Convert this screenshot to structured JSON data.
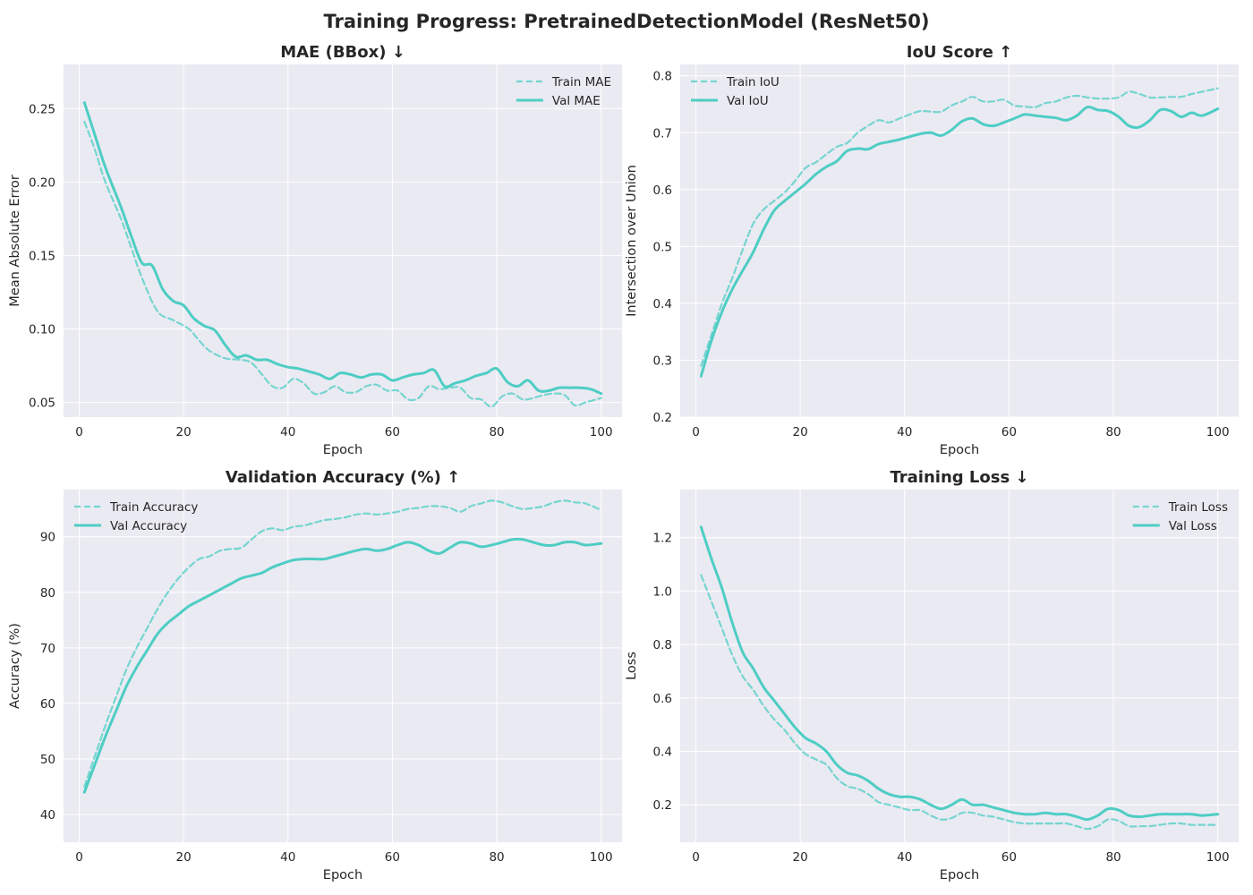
{
  "figure": {
    "suptitle": "Training Progress: PretrainedDetectionModel (ResNet50)",
    "colors": {
      "background": "#eaeaf2",
      "grid": "#ffffff",
      "line": "#4ecdc4"
    }
  },
  "chart_data": [
    {
      "type": "line",
      "title": "MAE (BBox) ↓",
      "xlabel": "Epoch",
      "ylabel": "Mean Absolute Error",
      "xlim": [
        -3,
        104
      ],
      "ylim": [
        0.04,
        0.28
      ],
      "xticks": [
        0,
        20,
        40,
        60,
        80,
        100
      ],
      "yticks": [
        0.05,
        0.1,
        0.15,
        0.2,
        0.25
      ],
      "ytick_labels": [
        "0.05",
        "0.10",
        "0.15",
        "0.20",
        "0.25"
      ],
      "legend": "top-right",
      "grid": true,
      "series": [
        {
          "name": "Train MAE",
          "style": "dashed",
          "x": [
            1,
            3,
            5,
            8,
            10,
            12,
            15,
            18,
            21,
            23,
            25,
            28,
            31,
            33,
            35,
            37,
            39,
            41,
            43,
            45,
            47,
            49,
            51,
            53,
            55,
            57,
            59,
            61,
            63,
            65,
            67,
            69,
            71,
            73,
            75,
            77,
            79,
            81,
            83,
            85,
            87,
            89,
            91,
            93,
            95,
            97,
            100
          ],
          "y": [
            0.241,
            0.222,
            0.2,
            0.175,
            0.155,
            0.135,
            0.112,
            0.106,
            0.1,
            0.092,
            0.085,
            0.08,
            0.079,
            0.077,
            0.069,
            0.061,
            0.06,
            0.066,
            0.063,
            0.056,
            0.057,
            0.061,
            0.057,
            0.057,
            0.061,
            0.062,
            0.058,
            0.058,
            0.052,
            0.053,
            0.061,
            0.059,
            0.06,
            0.06,
            0.053,
            0.052,
            0.047,
            0.054,
            0.056,
            0.052,
            0.053,
            0.055,
            0.056,
            0.055,
            0.048,
            0.05,
            0.053
          ]
        },
        {
          "name": "Val MAE",
          "style": "solid",
          "x": [
            1,
            3,
            5,
            8,
            10,
            12,
            14,
            16,
            18,
            20,
            22,
            24,
            26,
            28,
            30,
            32,
            34,
            36,
            38,
            40,
            42,
            44,
            46,
            48,
            50,
            52,
            54,
            56,
            58,
            60,
            62,
            64,
            66,
            68,
            70,
            72,
            74,
            76,
            78,
            80,
            82,
            84,
            86,
            88,
            90,
            92,
            94,
            96,
            98,
            100
          ],
          "y": [
            0.254,
            0.232,
            0.21,
            0.183,
            0.163,
            0.145,
            0.143,
            0.127,
            0.119,
            0.116,
            0.107,
            0.102,
            0.099,
            0.089,
            0.081,
            0.082,
            0.079,
            0.079,
            0.076,
            0.074,
            0.073,
            0.071,
            0.069,
            0.066,
            0.07,
            0.069,
            0.067,
            0.069,
            0.069,
            0.065,
            0.067,
            0.069,
            0.07,
            0.072,
            0.061,
            0.063,
            0.065,
            0.068,
            0.07,
            0.073,
            0.064,
            0.061,
            0.065,
            0.058,
            0.058,
            0.06,
            0.06,
            0.06,
            0.059,
            0.056
          ]
        }
      ]
    },
    {
      "type": "line",
      "title": "IoU Score ↑",
      "xlabel": "Epoch",
      "ylabel": "Intersection over Union",
      "xlim": [
        -3,
        104
      ],
      "ylim": [
        0.2,
        0.82
      ],
      "xticks": [
        0,
        20,
        40,
        60,
        80,
        100
      ],
      "yticks": [
        0.2,
        0.3,
        0.4,
        0.5,
        0.6,
        0.7,
        0.8
      ],
      "ytick_labels": [
        "0.2",
        "0.3",
        "0.4",
        "0.5",
        "0.6",
        "0.7",
        "0.8"
      ],
      "legend": "top-left",
      "grid": true,
      "series": [
        {
          "name": "Train IoU",
          "style": "dashed",
          "x": [
            1,
            3,
            5,
            7,
            9,
            11,
            13,
            15,
            17,
            19,
            21,
            23,
            25,
            27,
            29,
            31,
            33,
            35,
            37,
            39,
            41,
            43,
            45,
            47,
            49,
            51,
            53,
            55,
            57,
            59,
            61,
            63,
            65,
            67,
            69,
            71,
            73,
            75,
            77,
            79,
            81,
            83,
            85,
            87,
            89,
            91,
            93,
            95,
            97,
            100
          ],
          "y": [
            0.29,
            0.345,
            0.4,
            0.445,
            0.495,
            0.54,
            0.565,
            0.58,
            0.595,
            0.615,
            0.638,
            0.648,
            0.662,
            0.675,
            0.682,
            0.7,
            0.712,
            0.722,
            0.718,
            0.725,
            0.732,
            0.738,
            0.737,
            0.737,
            0.748,
            0.755,
            0.763,
            0.755,
            0.755,
            0.758,
            0.748,
            0.746,
            0.745,
            0.752,
            0.755,
            0.762,
            0.765,
            0.762,
            0.76,
            0.76,
            0.762,
            0.772,
            0.768,
            0.762,
            0.762,
            0.763,
            0.763,
            0.768,
            0.772,
            0.778
          ]
        },
        {
          "name": "Val IoU",
          "style": "solid",
          "x": [
            1,
            3,
            5,
            7,
            9,
            11,
            13,
            15,
            17,
            19,
            21,
            23,
            25,
            27,
            29,
            31,
            33,
            35,
            37,
            39,
            41,
            43,
            45,
            47,
            49,
            51,
            53,
            55,
            57,
            59,
            61,
            63,
            65,
            67,
            69,
            71,
            73,
            75,
            77,
            79,
            81,
            83,
            85,
            87,
            89,
            91,
            93,
            95,
            97,
            100
          ],
          "y": [
            0.272,
            0.335,
            0.385,
            0.425,
            0.458,
            0.49,
            0.53,
            0.563,
            0.58,
            0.595,
            0.61,
            0.627,
            0.64,
            0.65,
            0.668,
            0.672,
            0.671,
            0.68,
            0.684,
            0.688,
            0.693,
            0.698,
            0.7,
            0.695,
            0.705,
            0.72,
            0.725,
            0.715,
            0.712,
            0.718,
            0.725,
            0.732,
            0.73,
            0.728,
            0.726,
            0.722,
            0.73,
            0.745,
            0.74,
            0.738,
            0.728,
            0.712,
            0.71,
            0.722,
            0.74,
            0.738,
            0.728,
            0.735,
            0.73,
            0.742
          ]
        }
      ]
    },
    {
      "type": "line",
      "title": "Validation Accuracy (%) ↑",
      "xlabel": "Epoch",
      "ylabel": "Accuracy (%)",
      "xlim": [
        -3,
        104
      ],
      "ylim": [
        35,
        98.5
      ],
      "xticks": [
        0,
        20,
        40,
        60,
        80,
        100
      ],
      "yticks": [
        40,
        50,
        60,
        70,
        80,
        90
      ],
      "ytick_labels": [
        "40",
        "50",
        "60",
        "70",
        "80",
        "90"
      ],
      "legend": "top-left",
      "grid": true,
      "series": [
        {
          "name": "Train Accuracy",
          "style": "dashed",
          "x": [
            1,
            3,
            5,
            7,
            9,
            11,
            13,
            15,
            17,
            19,
            21,
            23,
            25,
            27,
            29,
            31,
            33,
            35,
            37,
            39,
            41,
            43,
            45,
            47,
            49,
            51,
            53,
            55,
            57,
            59,
            61,
            63,
            65,
            67,
            69,
            71,
            73,
            75,
            77,
            79,
            81,
            83,
            85,
            87,
            89,
            91,
            93,
            95,
            97,
            100
          ],
          "y": [
            45.0,
            50.5,
            56.0,
            61.0,
            66.0,
            70.0,
            73.5,
            77.0,
            80.0,
            82.5,
            84.5,
            86.0,
            86.5,
            87.5,
            87.8,
            88.0,
            89.5,
            91.0,
            91.5,
            91.2,
            91.8,
            92.0,
            92.5,
            93.0,
            93.2,
            93.5,
            94.0,
            94.2,
            94.0,
            94.2,
            94.5,
            95.0,
            95.2,
            95.5,
            95.5,
            95.2,
            94.5,
            95.5,
            96.0,
            96.5,
            96.2,
            95.5,
            95.0,
            95.2,
            95.5,
            96.2,
            96.5,
            96.2,
            96.0,
            94.8
          ]
        },
        {
          "name": "Val Accuracy",
          "style": "solid",
          "x": [
            1,
            3,
            5,
            7,
            9,
            11,
            13,
            15,
            17,
            19,
            21,
            23,
            25,
            27,
            29,
            31,
            33,
            35,
            37,
            39,
            41,
            43,
            45,
            47,
            49,
            51,
            53,
            55,
            57,
            59,
            61,
            63,
            65,
            67,
            69,
            71,
            73,
            75,
            77,
            79,
            81,
            83,
            85,
            87,
            89,
            91,
            93,
            95,
            97,
            100
          ],
          "y": [
            44.0,
            49.0,
            54.0,
            58.5,
            63.0,
            66.5,
            69.5,
            72.5,
            74.5,
            76.0,
            77.5,
            78.5,
            79.5,
            80.5,
            81.5,
            82.5,
            83.0,
            83.5,
            84.5,
            85.2,
            85.8,
            86.0,
            86.0,
            86.0,
            86.5,
            87.0,
            87.5,
            87.8,
            87.5,
            87.8,
            88.5,
            89.0,
            88.5,
            87.5,
            87.0,
            88.0,
            89.0,
            88.8,
            88.2,
            88.5,
            89.0,
            89.5,
            89.5,
            89.0,
            88.5,
            88.5,
            89.0,
            89.0,
            88.5,
            88.8
          ]
        }
      ]
    },
    {
      "type": "line",
      "title": "Training Loss ↓",
      "xlabel": "Epoch",
      "ylabel": "Loss",
      "xlim": [
        -3,
        104
      ],
      "ylim": [
        0.06,
        1.38
      ],
      "xticks": [
        0,
        20,
        40,
        60,
        80,
        100
      ],
      "yticks": [
        0.2,
        0.4,
        0.6,
        0.8,
        1.0,
        1.2
      ],
      "ytick_labels": [
        "0.2",
        "0.4",
        "0.6",
        "0.8",
        "1.0",
        "1.2"
      ],
      "legend": "top-right",
      "grid": true,
      "series": [
        {
          "name": "Train Loss",
          "style": "dashed",
          "x": [
            1,
            3,
            5,
            7,
            9,
            11,
            13,
            15,
            17,
            19,
            21,
            23,
            25,
            27,
            29,
            31,
            33,
            35,
            37,
            39,
            41,
            43,
            45,
            47,
            49,
            51,
            53,
            55,
            57,
            59,
            61,
            63,
            65,
            67,
            69,
            71,
            73,
            75,
            77,
            79,
            81,
            83,
            85,
            87,
            89,
            91,
            93,
            95,
            97,
            100
          ],
          "y": [
            1.06,
            0.96,
            0.86,
            0.76,
            0.68,
            0.63,
            0.57,
            0.52,
            0.48,
            0.43,
            0.39,
            0.37,
            0.35,
            0.3,
            0.27,
            0.26,
            0.24,
            0.21,
            0.2,
            0.19,
            0.18,
            0.18,
            0.16,
            0.145,
            0.15,
            0.17,
            0.17,
            0.16,
            0.155,
            0.145,
            0.135,
            0.13,
            0.13,
            0.13,
            0.13,
            0.13,
            0.12,
            0.11,
            0.12,
            0.145,
            0.14,
            0.12,
            0.12,
            0.12,
            0.125,
            0.13,
            0.13,
            0.125,
            0.125,
            0.125
          ]
        },
        {
          "name": "Val Loss",
          "style": "solid",
          "x": [
            1,
            3,
            5,
            7,
            9,
            11,
            13,
            15,
            17,
            19,
            21,
            23,
            25,
            27,
            29,
            31,
            33,
            35,
            37,
            39,
            41,
            43,
            45,
            47,
            49,
            51,
            53,
            55,
            57,
            59,
            61,
            63,
            65,
            67,
            69,
            71,
            73,
            75,
            77,
            79,
            81,
            83,
            85,
            87,
            89,
            91,
            93,
            95,
            97,
            100
          ],
          "y": [
            1.24,
            1.12,
            1.01,
            0.88,
            0.77,
            0.71,
            0.64,
            0.59,
            0.54,
            0.49,
            0.45,
            0.43,
            0.4,
            0.35,
            0.32,
            0.31,
            0.29,
            0.26,
            0.24,
            0.23,
            0.23,
            0.22,
            0.2,
            0.185,
            0.2,
            0.22,
            0.2,
            0.2,
            0.19,
            0.18,
            0.17,
            0.165,
            0.165,
            0.17,
            0.165,
            0.165,
            0.155,
            0.145,
            0.16,
            0.185,
            0.18,
            0.16,
            0.155,
            0.16,
            0.165,
            0.165,
            0.165,
            0.165,
            0.16,
            0.165
          ]
        }
      ]
    }
  ]
}
